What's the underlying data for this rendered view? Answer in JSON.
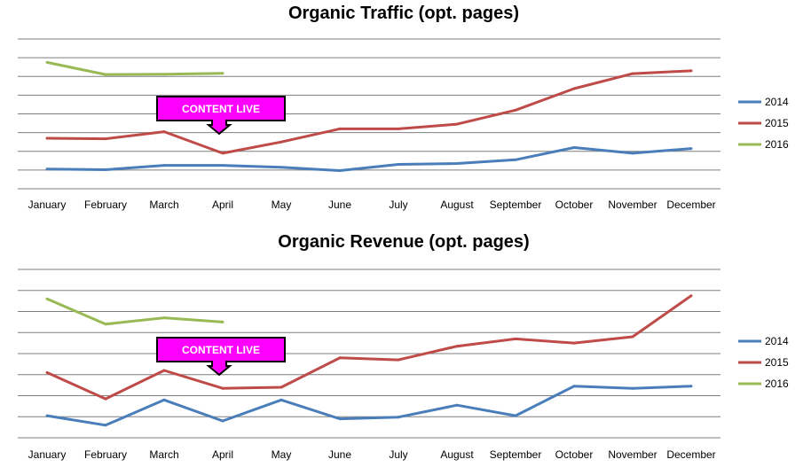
{
  "chart_data": [
    {
      "type": "line",
      "title": "Organic Traffic (opt. pages)",
      "xlabel": "",
      "ylabel": "",
      "categories": [
        "January",
        "February",
        "March",
        "April",
        "May",
        "June",
        "July",
        "August",
        "September",
        "October",
        "November",
        "December"
      ],
      "ylim": [
        0,
        8
      ],
      "grid": true,
      "legend_position": "right",
      "series": [
        {
          "name": "2014",
          "color": "#4a7ebb",
          "values": [
            1.05,
            1.02,
            1.25,
            1.25,
            1.15,
            0.97,
            1.3,
            1.35,
            1.55,
            2.2,
            1.9,
            2.15
          ]
        },
        {
          "name": "2015",
          "color": "#be4b48",
          "values": [
            2.7,
            2.67,
            3.05,
            1.9,
            2.5,
            3.2,
            3.2,
            3.45,
            4.2,
            5.35,
            6.15,
            6.3
          ]
        },
        {
          "name": "2016",
          "color": "#98b954",
          "values": [
            6.75,
            6.1,
            6.12,
            6.17,
            null,
            null,
            null,
            null,
            null,
            null,
            null,
            null
          ]
        }
      ],
      "annotation": {
        "label": "CONTENT LIVE",
        "category": "April",
        "color": "#ff00ff"
      }
    },
    {
      "type": "line",
      "title": "Organic Revenue (opt. pages)",
      "xlabel": "",
      "ylabel": "",
      "categories": [
        "January",
        "February",
        "March",
        "April",
        "May",
        "June",
        "July",
        "August",
        "September",
        "October",
        "November",
        "December"
      ],
      "ylim": [
        0,
        8
      ],
      "grid": true,
      "legend_position": "right",
      "series": [
        {
          "name": "2014",
          "color": "#4a7ebb",
          "values": [
            1.05,
            0.6,
            1.8,
            0.8,
            1.8,
            0.9,
            0.98,
            1.55,
            1.05,
            2.45,
            2.35,
            2.45
          ]
        },
        {
          "name": "2015",
          "color": "#be4b48",
          "values": [
            3.1,
            1.85,
            3.2,
            2.35,
            2.4,
            3.8,
            3.7,
            4.35,
            4.7,
            4.5,
            4.8,
            6.75
          ]
        },
        {
          "name": "2016",
          "color": "#98b954",
          "values": [
            6.6,
            5.4,
            5.7,
            5.5,
            null,
            null,
            null,
            null,
            null,
            null,
            null,
            null
          ]
        }
      ],
      "annotation": {
        "label": "CONTENT LIVE",
        "category": "April",
        "color": "#ff00ff"
      }
    }
  ]
}
